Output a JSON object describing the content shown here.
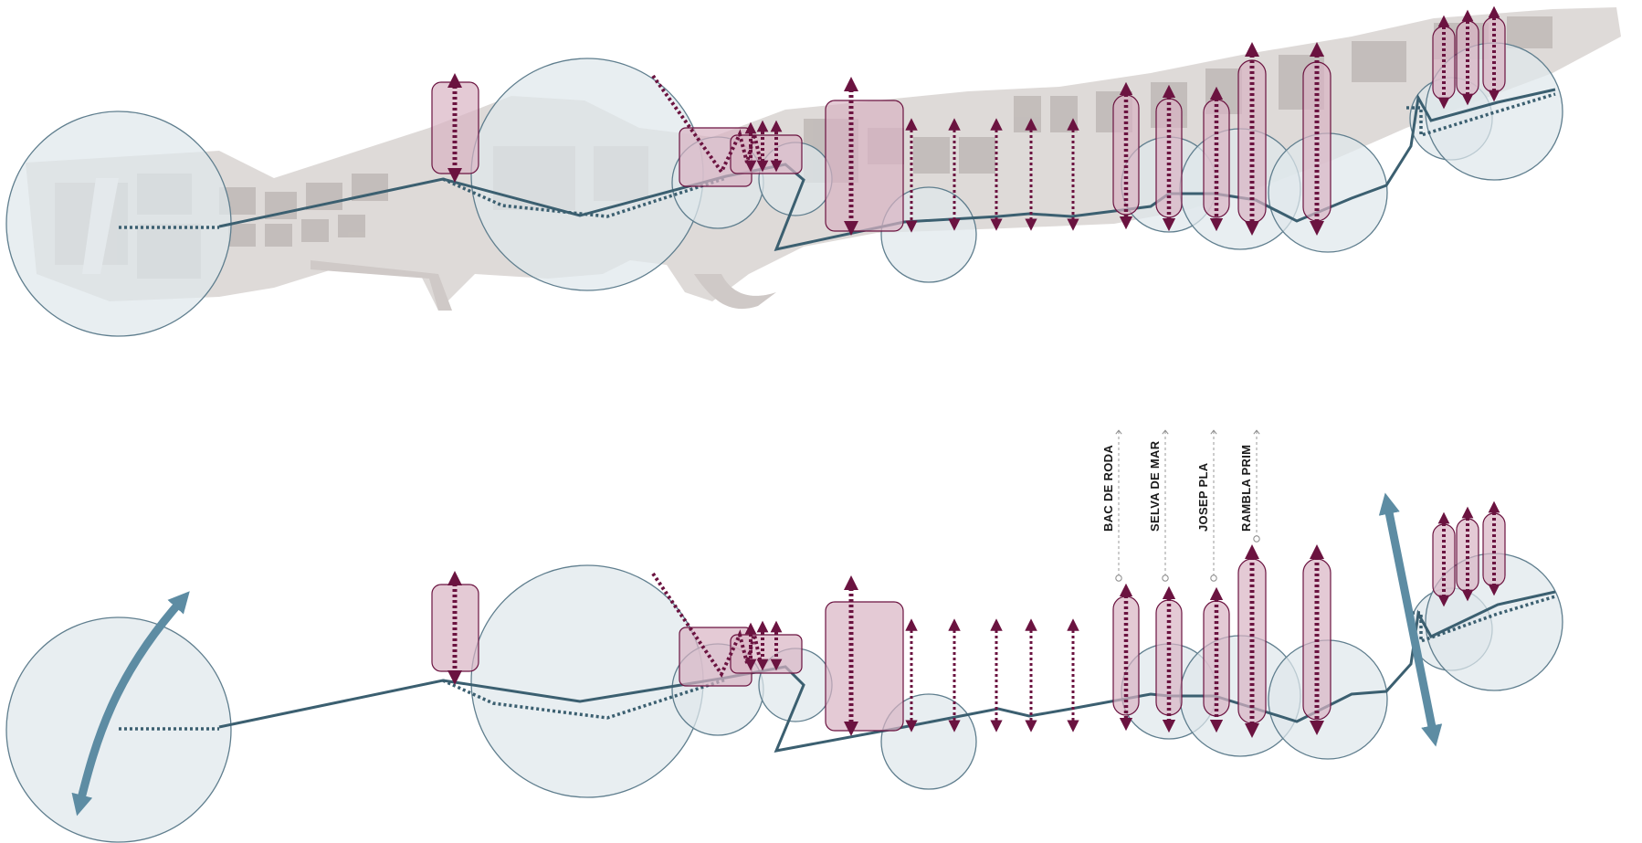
{
  "streets": [
    {
      "name": "BAC DE RODA"
    },
    {
      "name": "SELVA DE MAR"
    },
    {
      "name": "JOSEP PLA"
    },
    {
      "name": "RAMBLA PRIM"
    }
  ],
  "colors": {
    "circle_fill": "#dfe7ec",
    "circle_stroke": "#5f7e8e",
    "route_line": "#3b5f70",
    "axis_maroon": "#6b1340",
    "axis_box_fill": "#d9b3c3",
    "axis_box_stroke": "#6b1340",
    "blue_arrow": "#5d8ca3",
    "map_ground": "#d8d3d1",
    "map_buildings": "#bdb6b4"
  }
}
